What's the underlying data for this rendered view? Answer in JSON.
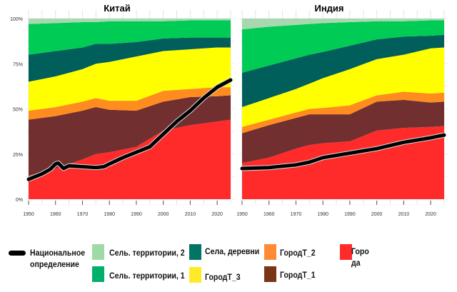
{
  "chart_data": [
    {
      "type": "area",
      "stacked": true,
      "title": "Китай",
      "x": [
        1950,
        1960,
        1970,
        1975,
        1980,
        1990,
        2000,
        2010,
        2020,
        2025
      ],
      "ylim": [
        0,
        100
      ],
      "yticks": [
        "0%",
        "25%",
        "50%",
        "75%",
        "100%"
      ],
      "xticks": [
        "1950",
        "1960",
        "1970",
        "1980",
        "1990",
        "2000",
        "2010",
        "2020"
      ],
      "series": [
        {
          "name": "Города",
          "values": [
            13,
            17,
            22,
            25,
            26,
            29,
            38,
            41,
            43,
            44
          ]
        },
        {
          "name": "ГородТ_1",
          "values": [
            31,
            29,
            27,
            26,
            23.5,
            20,
            16,
            15.5,
            14,
            13.5
          ]
        },
        {
          "name": "ГородТ_2",
          "values": [
            5,
            5,
            5,
            5,
            5,
            5.5,
            6,
            4.5,
            5,
            4.5
          ]
        },
        {
          "name": "ГородТ_3",
          "values": [
            16,
            17,
            18,
            19,
            21.5,
            24.5,
            22,
            22,
            22,
            22
          ]
        },
        {
          "name": "Села, деревни",
          "values": [
            15,
            14,
            12,
            11,
            10,
            8,
            7,
            6.5,
            5.5,
            5.5
          ]
        },
        {
          "name": "Сель. территории, 1",
          "values": [
            17,
            15.5,
            14,
            12,
            12.5,
            11.5,
            9.5,
            9.5,
            9.5,
            9.5
          ]
        },
        {
          "name": "Сель. территории, 2",
          "values": [
            3,
            2.5,
            2,
            2,
            1.5,
            1.5,
            1.5,
            1,
            1,
            1
          ]
        }
      ],
      "line": {
        "name": "Национальное определение",
        "x": [
          1950,
          1955,
          1958,
          1960,
          1961,
          1963,
          1965,
          1970,
          1975,
          1978,
          1980,
          1985,
          1990,
          1995,
          2000,
          2005,
          2010,
          2015,
          2020,
          2025
        ],
        "values": [
          11,
          14,
          16.5,
          19.5,
          20,
          17,
          18.5,
          18,
          17.5,
          18,
          19.5,
          23,
          26,
          29,
          36,
          43,
          49,
          56,
          62,
          66
        ]
      }
    },
    {
      "type": "area",
      "stacked": true,
      "title": "Индия",
      "x": [
        1950,
        1960,
        1970,
        1975,
        1980,
        1990,
        2000,
        2010,
        2020,
        2025
      ],
      "ylim": [
        0,
        100
      ],
      "xticks": [
        "1950",
        "1960",
        "1970",
        "1980",
        "1990",
        "2000",
        "2010",
        "2020"
      ],
      "series": [
        {
          "name": "Города",
          "values": [
            20,
            23,
            28,
            30,
            31,
            32,
            38,
            39.5,
            40,
            40.5
          ]
        },
        {
          "name": "ГородТ_1",
          "values": [
            16.5,
            18,
            17,
            17,
            16,
            15,
            16,
            15.5,
            13.5,
            13.5
          ]
        },
        {
          "name": "ГородТ_2",
          "values": [
            3.5,
            3,
            3,
            3,
            3.5,
            5,
            3.5,
            4.5,
            5,
            5
          ]
        },
        {
          "name": "ГородТ_3",
          "values": [
            11,
            12,
            13,
            14,
            16.5,
            20,
            20,
            20.5,
            25,
            25
          ]
        },
        {
          "name": "Села, деревни",
          "values": [
            19,
            18,
            17,
            16,
            14.5,
            13,
            11,
            10,
            7,
            7
          ]
        },
        {
          "name": "Сель. территории, 1",
          "values": [
            24,
            21.5,
            18.5,
            17,
            16,
            13,
            10,
            8.5,
            8.5,
            8
          ]
        },
        {
          "name": "Сель. территории, 2",
          "values": [
            6,
            4.5,
            3.5,
            3,
            2.5,
            2,
            1.5,
            1.5,
            1,
            1
          ]
        }
      ],
      "line": {
        "name": "Национальное определение",
        "x": [
          1950,
          1960,
          1970,
          1975,
          1980,
          1990,
          2000,
          2010,
          2020,
          2025
        ],
        "values": [
          17,
          17.5,
          19,
          20.5,
          23,
          25.5,
          28,
          31.5,
          34,
          35.5
        ]
      }
    }
  ],
  "colors": {
    "Города": "#ff2b2b",
    "ГородТ_1": "#722f2f",
    "ГородТ_2": "#ff8c1e",
    "ГородТ_3": "#ffff00",
    "Села, деревни": "#005f5a",
    "Сель. территории, 1": "#00cc55",
    "Сель. территории, 2": "#a8d8b0"
  },
  "legend": {
    "national": "Национальное определение",
    "rural2": "Сель. территории, 2",
    "rural1": "Сель. территории, 1",
    "villages": "Села, деревни",
    "town3": "ГородТ_3",
    "town2": "ГородТ_2",
    "town1": "ГородТ_1",
    "cities": "Города"
  }
}
